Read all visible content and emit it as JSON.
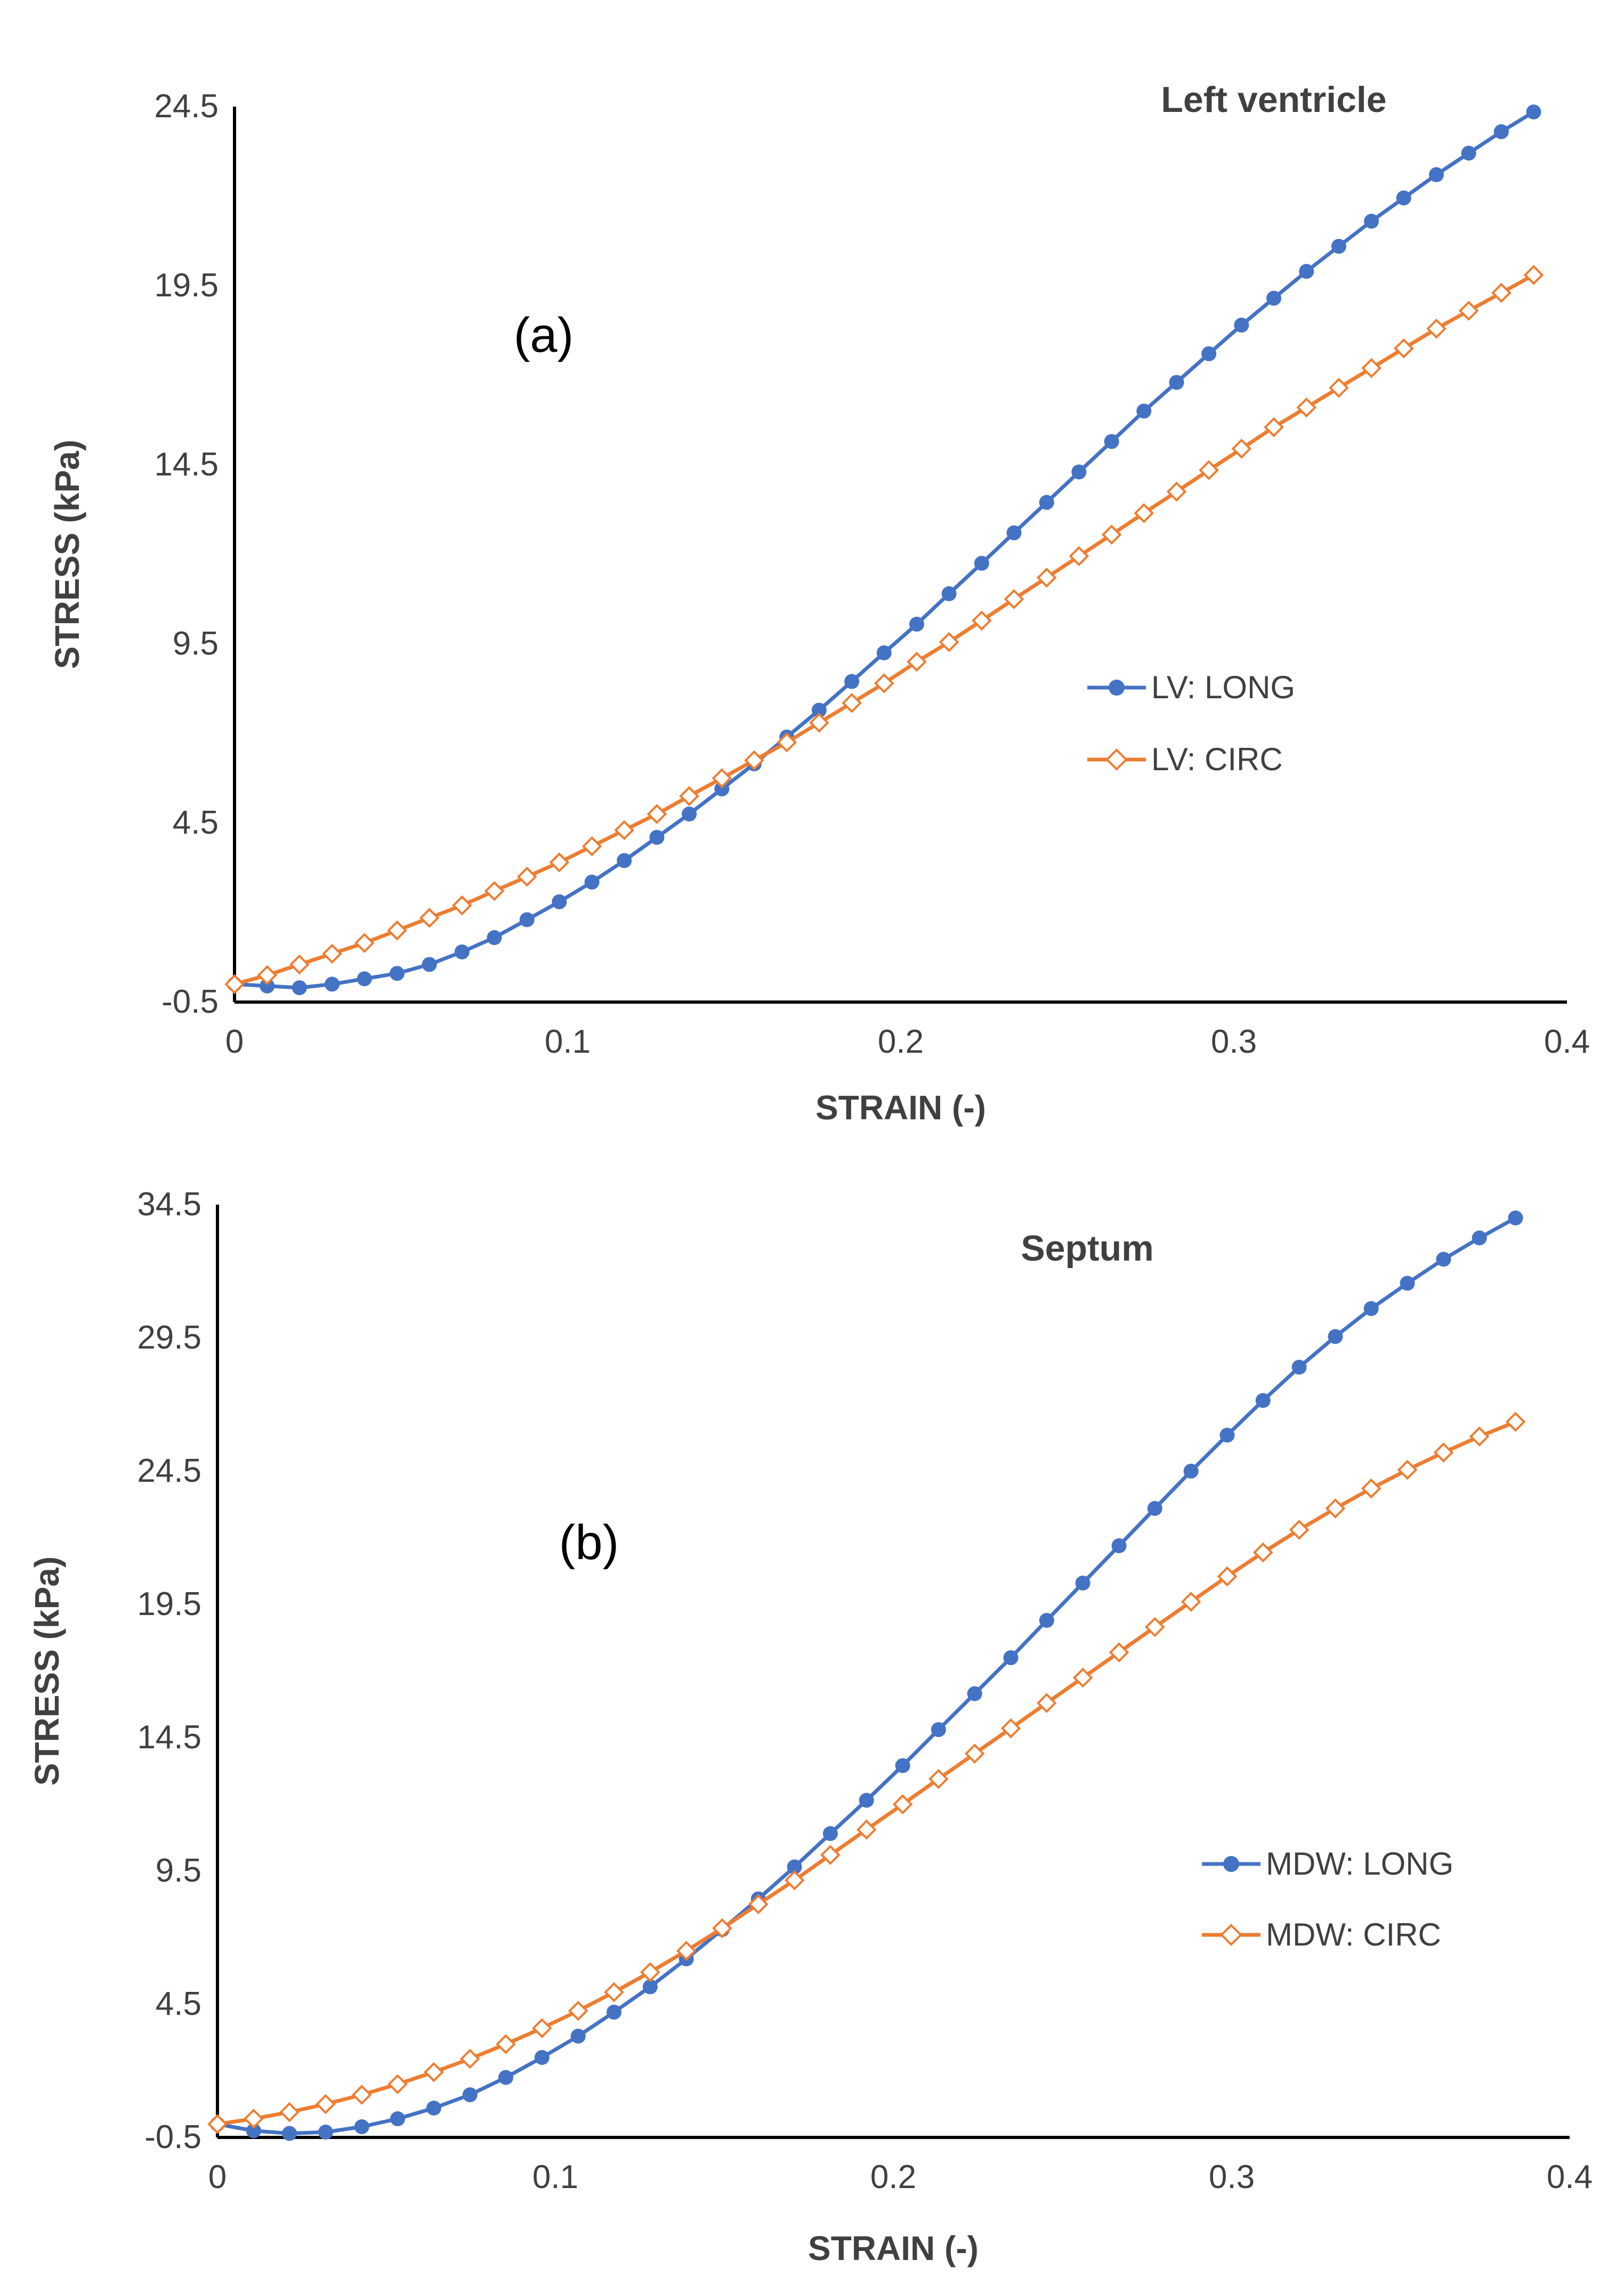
{
  "chart_data": [
    {
      "type": "line",
      "panel": "a",
      "title": "Left ventricle",
      "panel_label": "(a)",
      "xlabel": "STRAIN (-)",
      "ylabel": "STRESS (kPa)",
      "xlim": [
        0,
        0.4
      ],
      "ylim": [
        -0.5,
        24.5
      ],
      "xticks": [
        "0",
        "0.1",
        "0.2",
        "0.3",
        "0.4"
      ],
      "yticks": [
        "-0.5",
        "4.5",
        "9.5",
        "14.5",
        "19.5",
        "24.5"
      ],
      "legend_position": "right-center",
      "series": [
        {
          "name": "LV: LONG",
          "color": "#4472C4",
          "marker": "circle",
          "x": [
            0,
            0.0098,
            0.0195,
            0.0293,
            0.039,
            0.0488,
            0.0585,
            0.0683,
            0.078,
            0.0878,
            0.0975,
            0.1073,
            0.117,
            0.1268,
            0.1365,
            0.1463,
            0.156,
            0.1658,
            0.1755,
            0.1853,
            0.195,
            0.2048,
            0.2145,
            0.2243,
            0.234,
            0.2438,
            0.2535,
            0.2633,
            0.273,
            0.2828,
            0.2925,
            0.3023,
            0.312,
            0.3218,
            0.3315,
            0.3413,
            0.351,
            0.3608,
            0.3705,
            0.3803,
            0.39
          ],
          "y": [
            0,
            -0.05,
            -0.1,
            0,
            0.15,
            0.3,
            0.55,
            0.9,
            1.3,
            1.8,
            2.3,
            2.85,
            3.45,
            4.1,
            4.75,
            5.45,
            6.15,
            6.9,
            7.65,
            8.45,
            9.25,
            10.05,
            10.9,
            11.75,
            12.6,
            13.45,
            14.3,
            15.15,
            16.0,
            16.8,
            17.6,
            18.4,
            19.15,
            19.9,
            20.6,
            21.3,
            21.95,
            22.6,
            23.2,
            23.8,
            24.35
          ]
        },
        {
          "name": "LV: CIRC",
          "color": "#ED7D31",
          "marker": "diamond-open",
          "x": [
            0,
            0.0098,
            0.0195,
            0.0293,
            0.039,
            0.0488,
            0.0585,
            0.0683,
            0.078,
            0.0878,
            0.0975,
            0.1073,
            0.117,
            0.1268,
            0.1365,
            0.1463,
            0.156,
            0.1658,
            0.1755,
            0.1853,
            0.195,
            0.2048,
            0.2145,
            0.2243,
            0.234,
            0.2438,
            0.2535,
            0.2633,
            0.273,
            0.2828,
            0.2925,
            0.3023,
            0.312,
            0.3218,
            0.3315,
            0.3413,
            0.351,
            0.3608,
            0.3705,
            0.3803,
            0.39
          ],
          "y": [
            0,
            0.25,
            0.55,
            0.85,
            1.15,
            1.5,
            1.85,
            2.2,
            2.6,
            3.0,
            3.4,
            3.85,
            4.3,
            4.75,
            5.25,
            5.75,
            6.25,
            6.75,
            7.3,
            7.85,
            8.4,
            9.0,
            9.55,
            10.15,
            10.75,
            11.35,
            11.95,
            12.55,
            13.15,
            13.75,
            14.35,
            14.95,
            15.55,
            16.1,
            16.65,
            17.2,
            17.75,
            18.3,
            18.8,
            19.3,
            19.8
          ]
        }
      ]
    },
    {
      "type": "line",
      "panel": "b",
      "title": "Septum",
      "panel_label": "(b)",
      "xlabel": "STRAIN (-)",
      "ylabel": "STRESS (kPa)",
      "xlim": [
        0,
        0.4
      ],
      "ylim": [
        -0.5,
        34.5
      ],
      "xticks": [
        "0",
        "0.1",
        "0.2",
        "0.3",
        "0.4"
      ],
      "yticks": [
        "-0.5",
        "4.5",
        "9.5",
        "14.5",
        "19.5",
        "24.5",
        "29.5",
        "34.5"
      ],
      "legend_position": "right-center",
      "series": [
        {
          "name": "MDW: LONG",
          "color": "#4472C4",
          "marker": "circle",
          "x": [
            0,
            0.0107,
            0.0213,
            0.032,
            0.0427,
            0.0533,
            0.064,
            0.0747,
            0.0853,
            0.096,
            0.1067,
            0.1173,
            0.128,
            0.1387,
            0.1493,
            0.16,
            0.1707,
            0.1813,
            0.192,
            0.2027,
            0.2133,
            0.224,
            0.2347,
            0.2453,
            0.256,
            0.2667,
            0.2773,
            0.288,
            0.2987,
            0.3093,
            0.32,
            0.3307,
            0.3413,
            0.352,
            0.3627,
            0.3733,
            0.384
          ],
          "y": [
            0,
            -0.25,
            -0.35,
            -0.3,
            -0.1,
            0.2,
            0.6,
            1.1,
            1.75,
            2.5,
            3.3,
            4.2,
            5.15,
            6.2,
            7.3,
            8.45,
            9.65,
            10.9,
            12.15,
            13.45,
            14.8,
            16.15,
            17.5,
            18.9,
            20.3,
            21.7,
            23.1,
            24.5,
            25.85,
            27.15,
            28.4,
            29.55,
            30.6,
            31.55,
            32.45,
            33.25,
            34.0
          ]
        },
        {
          "name": "MDW: CIRC",
          "color": "#ED7D31",
          "marker": "diamond-open",
          "x": [
            0,
            0.0107,
            0.0213,
            0.032,
            0.0427,
            0.0533,
            0.064,
            0.0747,
            0.0853,
            0.096,
            0.1067,
            0.1173,
            0.128,
            0.1387,
            0.1493,
            0.16,
            0.1707,
            0.1813,
            0.192,
            0.2027,
            0.2133,
            0.224,
            0.2347,
            0.2453,
            0.256,
            0.2667,
            0.2773,
            0.288,
            0.2987,
            0.3093,
            0.32,
            0.3307,
            0.3413,
            0.352,
            0.3627,
            0.3733,
            0.384
          ],
          "y": [
            0,
            0.2,
            0.45,
            0.75,
            1.1,
            1.5,
            1.95,
            2.45,
            3.0,
            3.6,
            4.25,
            4.95,
            5.7,
            6.5,
            7.35,
            8.25,
            9.15,
            10.1,
            11.05,
            12.0,
            12.95,
            13.9,
            14.85,
            15.8,
            16.75,
            17.7,
            18.65,
            19.6,
            20.55,
            21.45,
            22.3,
            23.1,
            23.85,
            24.55,
            25.2,
            25.8,
            26.35
          ]
        }
      ]
    }
  ]
}
